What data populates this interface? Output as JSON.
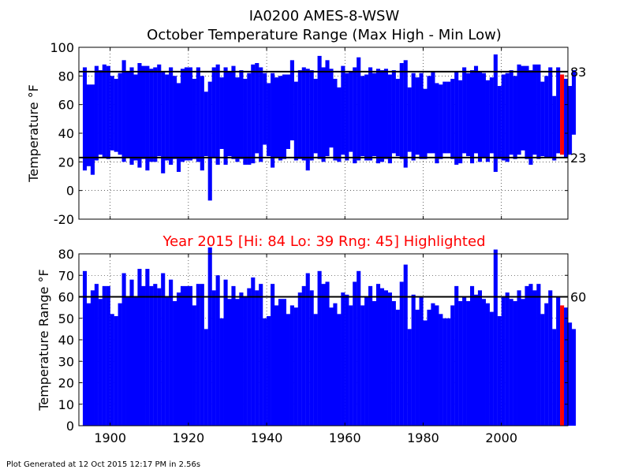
{
  "figure": {
    "title_line1": "IA0200 AMES-8-WSW",
    "title_line2": "October Temperature Range (Max High - Min Low)",
    "footer": "Plot Generated at 12 Oct 2015 12:17 PM in 2.56s"
  },
  "colors": {
    "bar": "#0000ff",
    "highlight": "#ff0000",
    "reference": "#000000",
    "highlight_title": "#ff0000"
  },
  "chart_data": [
    {
      "type": "bar",
      "chart_kind": "floating range bars",
      "title": "",
      "xlabel": "",
      "ylabel": "Temperature °F",
      "xlim": [
        1892,
        2017
      ],
      "ylim": [
        -20,
        100
      ],
      "x_ticks": [
        "1900",
        "1920",
        "1940",
        "1960",
        "1980",
        "2000"
      ],
      "y_ticks": [
        "-20",
        "0",
        "20",
        "40",
        "60",
        "80",
        "100"
      ],
      "grid": true,
      "x_start": 1893,
      "high": [
        86,
        74,
        74,
        87,
        84,
        88,
        87,
        80,
        78,
        82,
        91,
        83,
        86,
        81,
        89,
        87,
        87,
        85,
        86,
        88,
        83,
        81,
        86,
        80,
        75,
        85,
        86,
        86,
        78,
        86,
        80,
        69,
        76,
        86,
        88,
        79,
        86,
        83,
        87,
        79,
        84,
        78,
        82,
        88,
        89,
        86,
        82,
        75,
        82,
        79,
        80,
        81,
        81,
        91,
        76,
        84,
        86,
        85,
        84,
        78,
        94,
        86,
        91,
        85,
        78,
        72,
        87,
        82,
        83,
        86,
        93,
        80,
        81,
        86,
        82,
        85,
        84,
        85,
        81,
        84,
        78,
        89,
        91,
        72,
        82,
        79,
        82,
        71,
        80,
        83,
        75,
        74,
        76,
        76,
        78,
        83,
        77,
        86,
        82,
        84,
        87,
        83,
        82,
        77,
        79,
        95,
        73,
        81,
        82,
        84,
        80,
        88,
        87,
        87,
        84,
        88,
        88,
        76,
        80,
        86,
        66,
        86,
        81,
        78,
        73,
        84
      ],
      "low": [
        14,
        17,
        11,
        21,
        25,
        23,
        22,
        28,
        27,
        25,
        20,
        23,
        18,
        21,
        16,
        22,
        14,
        20,
        20,
        24,
        12,
        21,
        18,
        22,
        13,
        20,
        21,
        21,
        22,
        20,
        14,
        24,
        -7,
        23,
        18,
        29,
        18,
        24,
        22,
        20,
        22,
        18,
        18,
        19,
        26,
        20,
        32,
        24,
        16,
        23,
        21,
        22,
        29,
        35,
        21,
        22,
        21,
        14,
        21,
        26,
        22,
        20,
        24,
        30,
        21,
        20,
        25,
        21,
        27,
        19,
        21,
        24,
        21,
        21,
        24,
        19,
        20,
        22,
        19,
        26,
        24,
        22,
        16,
        27,
        21,
        25,
        22,
        22,
        26,
        26,
        19,
        22,
        26,
        26,
        22,
        18,
        19,
        26,
        24,
        19,
        26,
        20,
        23,
        20,
        26,
        13,
        22,
        21,
        20,
        25,
        22,
        25,
        28,
        22,
        18,
        25,
        22,
        24,
        23,
        23,
        21,
        26,
        25,
        23,
        25,
        39
      ],
      "highlight_year": 2015,
      "reference_lines": [
        {
          "value": 83,
          "label": "83"
        },
        {
          "value": 23,
          "label": "23"
        }
      ]
    },
    {
      "type": "bar",
      "title": "Year 2015 [Hi: 84 Lo: 39 Rng: 45] Highlighted",
      "xlabel": "",
      "ylabel": "Temperature Range °F",
      "xlim": [
        1892,
        2017
      ],
      "ylim": [
        0,
        80
      ],
      "x_ticks": [
        "1900",
        "1920",
        "1940",
        "1960",
        "1980",
        "2000"
      ],
      "y_ticks": [
        "0",
        "10",
        "20",
        "30",
        "40",
        "50",
        "60",
        "70",
        "80"
      ],
      "grid": true,
      "x_start": 1893,
      "values": [
        72,
        57,
        63,
        66,
        59,
        65,
        65,
        52,
        51,
        57,
        71,
        60,
        68,
        60,
        73,
        65,
        73,
        65,
        66,
        64,
        71,
        60,
        68,
        58,
        62,
        65,
        65,
        65,
        56,
        66,
        66,
        45,
        83,
        63,
        70,
        50,
        68,
        59,
        65,
        59,
        62,
        60,
        64,
        69,
        63,
        66,
        50,
        51,
        66,
        56,
        59,
        59,
        52,
        56,
        55,
        62,
        65,
        71,
        63,
        52,
        72,
        66,
        67,
        55,
        57,
        52,
        62,
        61,
        56,
        67,
        72,
        56,
        60,
        65,
        58,
        66,
        64,
        63,
        62,
        58,
        54,
        67,
        75,
        45,
        61,
        54,
        60,
        49,
        54,
        57,
        56,
        52,
        50,
        50,
        56,
        65,
        58,
        60,
        58,
        65,
        61,
        63,
        59,
        57,
        53,
        82,
        51,
        60,
        62,
        59,
        58,
        63,
        59,
        65,
        66,
        63,
        66,
        52,
        57,
        63,
        45,
        60,
        56,
        55,
        48,
        45
      ],
      "highlight_year": 2015,
      "reference_lines": [
        {
          "value": 60,
          "label": "60"
        }
      ]
    }
  ]
}
